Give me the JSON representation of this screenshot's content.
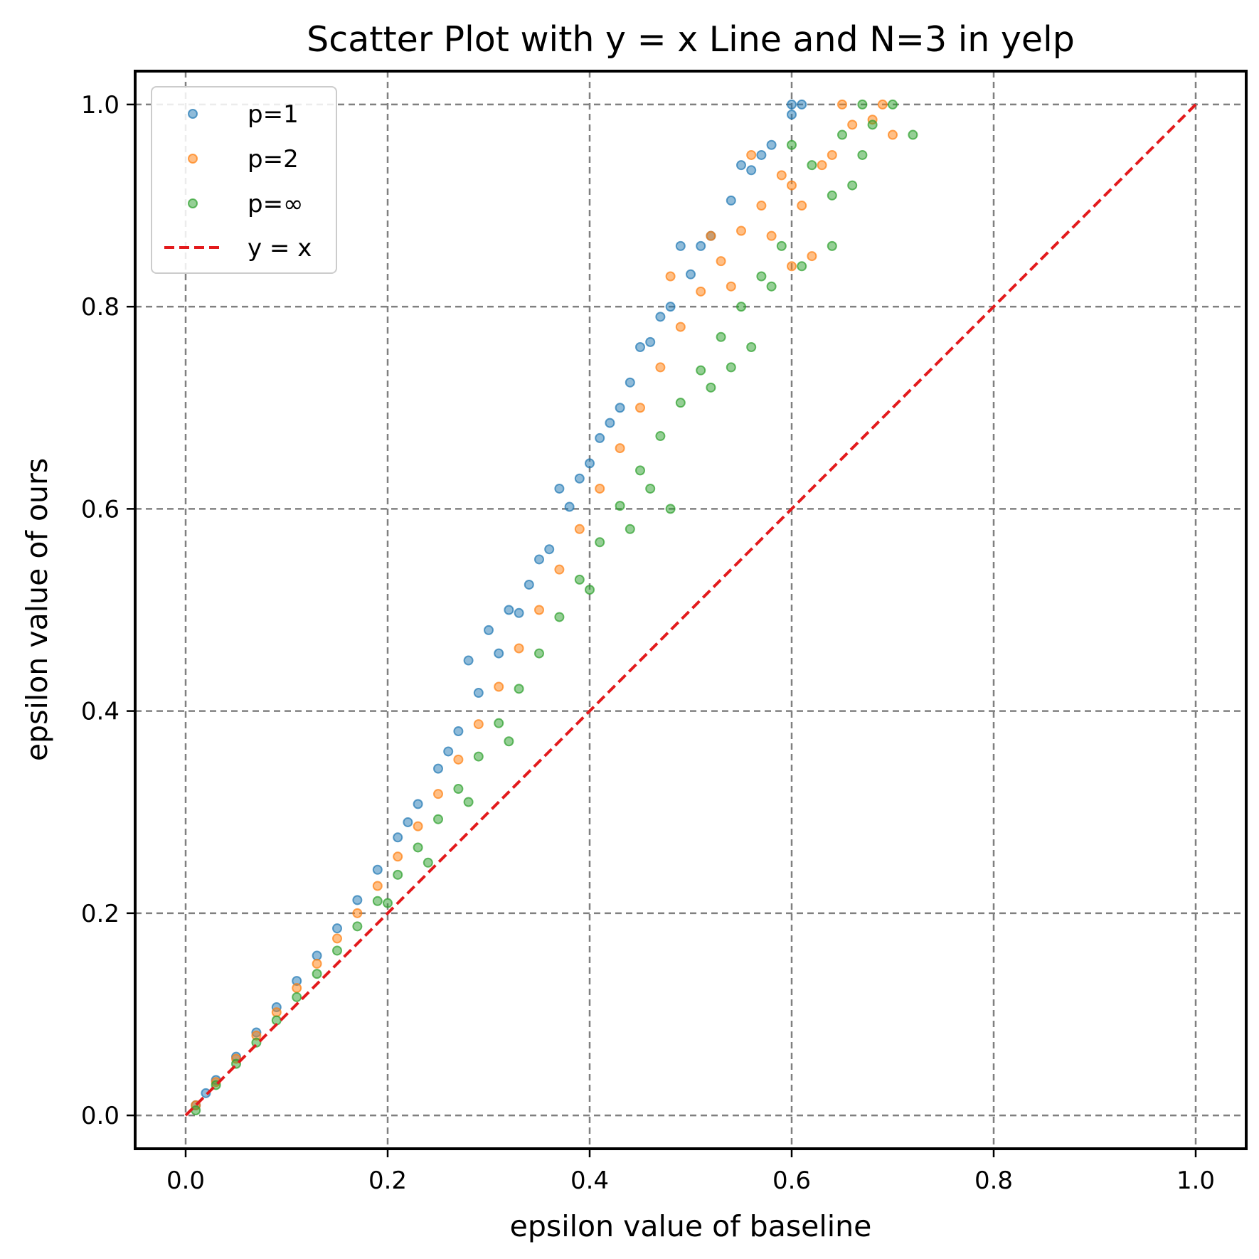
{
  "chart_data": {
    "type": "scatter",
    "title": "Scatter Plot with y = x Line and N=3 in yelp",
    "xlabel": "epsilon value of baseline",
    "ylabel": "epsilon value of ours",
    "xlim": [
      -0.05,
      1.05
    ],
    "ylim": [
      -0.033,
      1.033
    ],
    "xticks": [
      0.0,
      0.2,
      0.4,
      0.6,
      0.8,
      1.0
    ],
    "yticks": [
      0.0,
      0.2,
      0.4,
      0.6,
      0.8,
      1.0
    ],
    "xtick_labels": [
      "0.0",
      "0.2",
      "0.4",
      "0.6",
      "0.8",
      "1.0"
    ],
    "ytick_labels": [
      "0.0",
      "0.2",
      "0.4",
      "0.6",
      "0.8",
      "1.0"
    ],
    "grid": true,
    "grid_style": "dashed",
    "legend_position": "top-left",
    "series": [
      {
        "name": "p=1",
        "kind": "scatter",
        "color": "#1f77b4",
        "points": [
          [
            0.01,
            0.01
          ],
          [
            0.02,
            0.022
          ],
          [
            0.03,
            0.035
          ],
          [
            0.05,
            0.058
          ],
          [
            0.07,
            0.082
          ],
          [
            0.09,
            0.107
          ],
          [
            0.11,
            0.133
          ],
          [
            0.13,
            0.158
          ],
          [
            0.15,
            0.185
          ],
          [
            0.17,
            0.213
          ],
          [
            0.19,
            0.243
          ],
          [
            0.21,
            0.275
          ],
          [
            0.23,
            0.308
          ],
          [
            0.25,
            0.343
          ],
          [
            0.27,
            0.38
          ],
          [
            0.29,
            0.418
          ],
          [
            0.31,
            0.457
          ],
          [
            0.33,
            0.497
          ],
          [
            0.34,
            0.525
          ],
          [
            0.36,
            0.56
          ],
          [
            0.38,
            0.602
          ],
          [
            0.4,
            0.645
          ],
          [
            0.42,
            0.685
          ],
          [
            0.44,
            0.725
          ],
          [
            0.46,
            0.765
          ],
          [
            0.48,
            0.8
          ],
          [
            0.5,
            0.832
          ],
          [
            0.52,
            0.87
          ],
          [
            0.54,
            0.905
          ],
          [
            0.56,
            0.935
          ],
          [
            0.58,
            0.96
          ],
          [
            0.6,
            0.99
          ],
          [
            0.61,
            1.0
          ],
          [
            0.3,
            0.48
          ],
          [
            0.28,
            0.45
          ],
          [
            0.37,
            0.62
          ],
          [
            0.41,
            0.67
          ],
          [
            0.45,
            0.76
          ],
          [
            0.49,
            0.86
          ],
          [
            0.55,
            0.94
          ],
          [
            0.57,
            0.95
          ],
          [
            0.6,
            1.0
          ],
          [
            0.22,
            0.29
          ],
          [
            0.26,
            0.36
          ],
          [
            0.32,
            0.5
          ],
          [
            0.35,
            0.55
          ],
          [
            0.39,
            0.63
          ],
          [
            0.43,
            0.7
          ],
          [
            0.47,
            0.79
          ],
          [
            0.51,
            0.86
          ]
        ]
      },
      {
        "name": "p=2",
        "kind": "scatter",
        "color": "#ff7f0e",
        "points": [
          [
            0.01,
            0.01
          ],
          [
            0.03,
            0.033
          ],
          [
            0.05,
            0.056
          ],
          [
            0.07,
            0.079
          ],
          [
            0.09,
            0.102
          ],
          [
            0.11,
            0.126
          ],
          [
            0.13,
            0.15
          ],
          [
            0.15,
            0.175
          ],
          [
            0.17,
            0.2
          ],
          [
            0.19,
            0.227
          ],
          [
            0.21,
            0.256
          ],
          [
            0.23,
            0.286
          ],
          [
            0.25,
            0.318
          ],
          [
            0.27,
            0.352
          ],
          [
            0.29,
            0.387
          ],
          [
            0.31,
            0.424
          ],
          [
            0.33,
            0.462
          ],
          [
            0.35,
            0.5
          ],
          [
            0.37,
            0.54
          ],
          [
            0.39,
            0.58
          ],
          [
            0.41,
            0.62
          ],
          [
            0.43,
            0.66
          ],
          [
            0.45,
            0.7
          ],
          [
            0.47,
            0.74
          ],
          [
            0.49,
            0.78
          ],
          [
            0.51,
            0.815
          ],
          [
            0.53,
            0.845
          ],
          [
            0.55,
            0.875
          ],
          [
            0.57,
            0.9
          ],
          [
            0.59,
            0.93
          ],
          [
            0.61,
            0.9
          ],
          [
            0.63,
            0.94
          ],
          [
            0.64,
            0.95
          ],
          [
            0.66,
            0.98
          ],
          [
            0.68,
            0.985
          ],
          [
            0.7,
            0.97
          ],
          [
            0.62,
            0.85
          ],
          [
            0.6,
            0.84
          ],
          [
            0.56,
            0.95
          ],
          [
            0.52,
            0.87
          ],
          [
            0.48,
            0.83
          ],
          [
            0.65,
            1.0
          ],
          [
            0.69,
            1.0
          ],
          [
            0.6,
            0.92
          ],
          [
            0.58,
            0.87
          ],
          [
            0.54,
            0.82
          ]
        ]
      },
      {
        "name": "p=∞",
        "kind": "scatter",
        "color": "#2ca02c",
        "points": [
          [
            0.01,
            0.005
          ],
          [
            0.03,
            0.03
          ],
          [
            0.05,
            0.051
          ],
          [
            0.07,
            0.072
          ],
          [
            0.09,
            0.094
          ],
          [
            0.11,
            0.117
          ],
          [
            0.13,
            0.14
          ],
          [
            0.15,
            0.163
          ],
          [
            0.17,
            0.187
          ],
          [
            0.19,
            0.212
          ],
          [
            0.21,
            0.238
          ],
          [
            0.23,
            0.265
          ],
          [
            0.25,
            0.293
          ],
          [
            0.27,
            0.323
          ],
          [
            0.29,
            0.355
          ],
          [
            0.31,
            0.388
          ],
          [
            0.33,
            0.422
          ],
          [
            0.35,
            0.457
          ],
          [
            0.37,
            0.493
          ],
          [
            0.39,
            0.53
          ],
          [
            0.41,
            0.567
          ],
          [
            0.43,
            0.603
          ],
          [
            0.45,
            0.638
          ],
          [
            0.47,
            0.672
          ],
          [
            0.49,
            0.705
          ],
          [
            0.51,
            0.737
          ],
          [
            0.53,
            0.77
          ],
          [
            0.55,
            0.8
          ],
          [
            0.57,
            0.83
          ],
          [
            0.59,
            0.86
          ],
          [
            0.61,
            0.84
          ],
          [
            0.6,
            0.96
          ],
          [
            0.62,
            0.94
          ],
          [
            0.64,
            0.91
          ],
          [
            0.65,
            0.97
          ],
          [
            0.66,
            0.92
          ],
          [
            0.67,
            0.95
          ],
          [
            0.67,
            1.0
          ],
          [
            0.7,
            1.0
          ],
          [
            0.72,
            0.97
          ],
          [
            0.68,
            0.98
          ],
          [
            0.64,
            0.86
          ],
          [
            0.58,
            0.82
          ],
          [
            0.56,
            0.76
          ],
          [
            0.54,
            0.74
          ],
          [
            0.52,
            0.72
          ],
          [
            0.48,
            0.6
          ],
          [
            0.44,
            0.58
          ],
          [
            0.32,
            0.37
          ],
          [
            0.28,
            0.31
          ],
          [
            0.24,
            0.25
          ],
          [
            0.2,
            0.21
          ],
          [
            0.4,
            0.52
          ],
          [
            0.46,
            0.62
          ]
        ]
      },
      {
        "name": "y = x",
        "kind": "line",
        "color": "#e31a1c",
        "style": "dashed",
        "points": [
          [
            0.0,
            0.0
          ],
          [
            1.0,
            1.0
          ]
        ]
      }
    ]
  }
}
